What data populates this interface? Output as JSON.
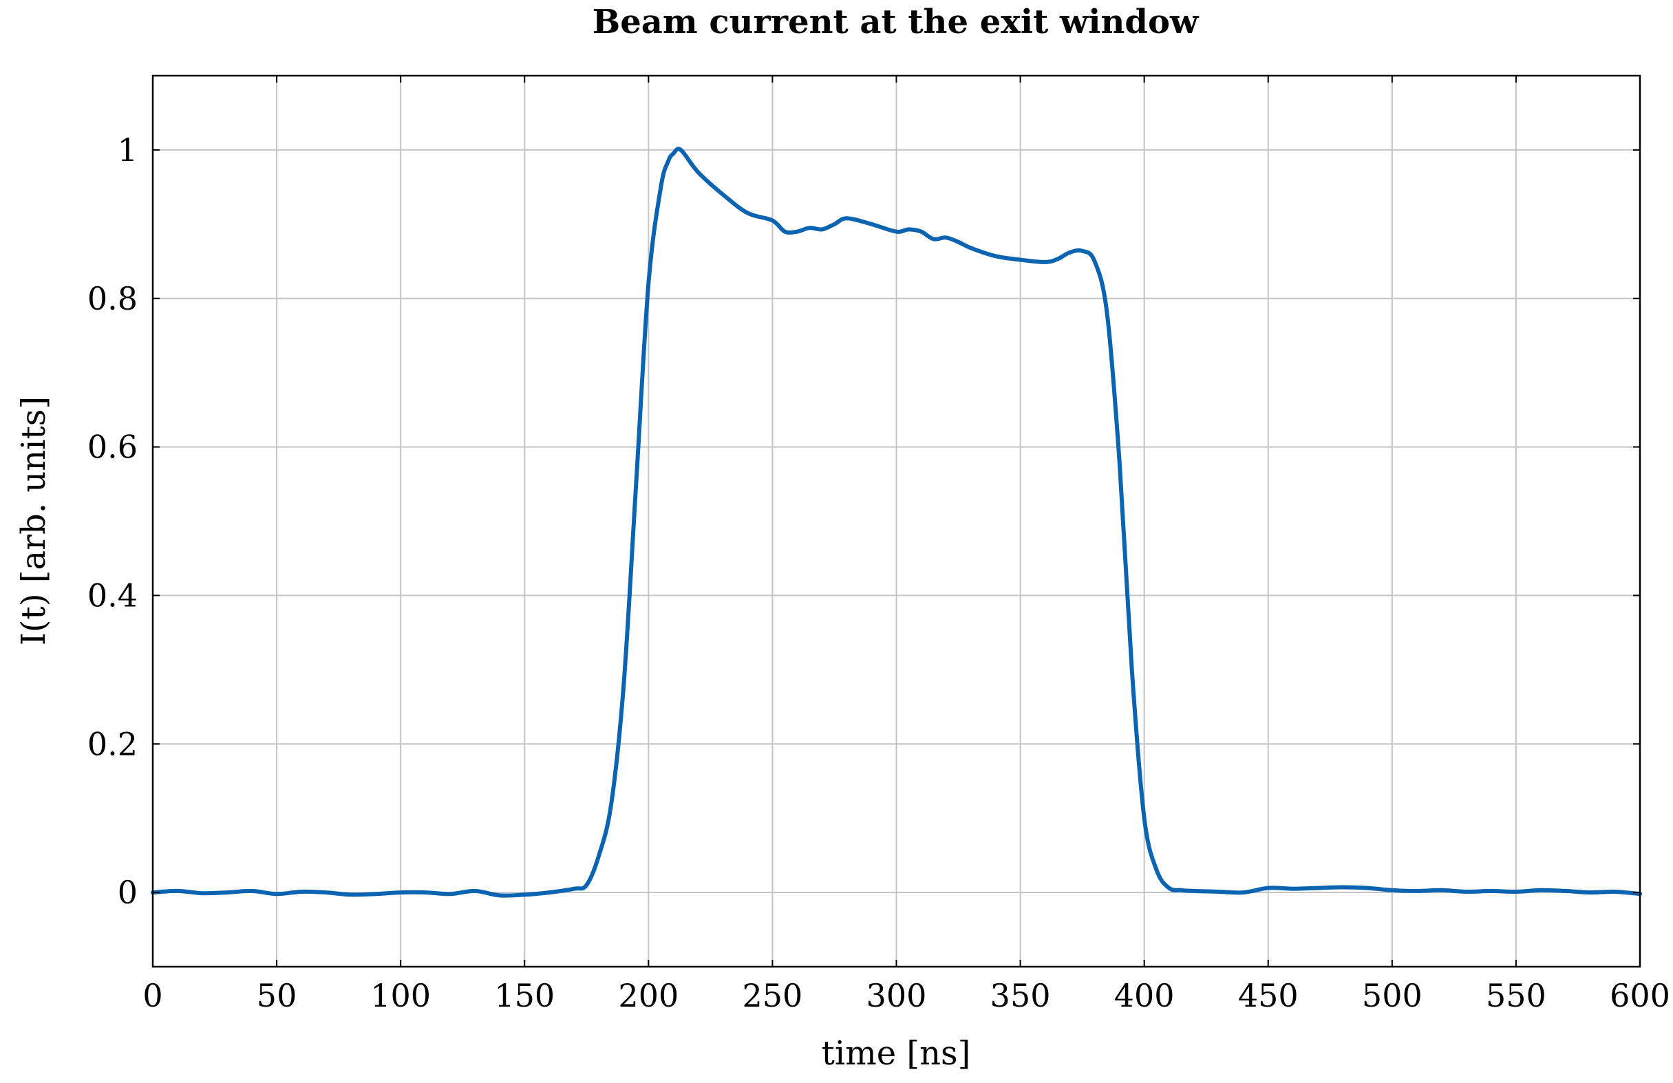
{
  "chart_data": {
    "type": "line",
    "title": "Beam current at the exit window",
    "xlabel": "time [ns]",
    "ylabel": "I(t) [arb. units]",
    "xlim": [
      0,
      600
    ],
    "ylim": [
      -0.1,
      1.1
    ],
    "xticks": [
      0,
      50,
      100,
      150,
      200,
      250,
      300,
      350,
      400,
      450,
      500,
      550,
      600
    ],
    "yticks": [
      0,
      0.2,
      0.4,
      0.6,
      0.8,
      1
    ],
    "xtick_labels": [
      "0",
      "50",
      "100",
      "150",
      "200",
      "250",
      "300",
      "350",
      "400",
      "450",
      "500",
      "550",
      "600"
    ],
    "ytick_labels": [
      "0",
      "0.2",
      "0.4",
      "0.6",
      "0.8",
      "1"
    ],
    "grid": true,
    "colors": {
      "series": "#0a64b1"
    },
    "series": [
      {
        "x": [
          0,
          10,
          20,
          30,
          40,
          50,
          60,
          70,
          80,
          90,
          100,
          110,
          120,
          130,
          140,
          150,
          160,
          170,
          175,
          180,
          185,
          190,
          195,
          200,
          205,
          208,
          210,
          213,
          220,
          230,
          240,
          250,
          255,
          260,
          265,
          270,
          275,
          280,
          290,
          300,
          305,
          310,
          315,
          320,
          325,
          330,
          340,
          350,
          360,
          365,
          370,
          375,
          380,
          385,
          390,
          395,
          400,
          405,
          410,
          415,
          420,
          430,
          440,
          450,
          460,
          470,
          480,
          490,
          500,
          510,
          520,
          530,
          540,
          550,
          560,
          570,
          580,
          590,
          600
        ],
        "y": [
          0.0,
          0.002,
          -0.001,
          0.0,
          0.002,
          -0.002,
          0.001,
          0.0,
          -0.003,
          -0.002,
          0.0,
          0.0,
          -0.002,
          0.002,
          -0.004,
          -0.003,
          0.0,
          0.005,
          0.01,
          0.05,
          0.12,
          0.28,
          0.55,
          0.82,
          0.95,
          0.985,
          0.995,
          1.0,
          0.97,
          0.94,
          0.915,
          0.905,
          0.89,
          0.89,
          0.895,
          0.893,
          0.9,
          0.908,
          0.9,
          0.89,
          0.893,
          0.89,
          0.88,
          0.882,
          0.876,
          0.868,
          0.857,
          0.852,
          0.849,
          0.853,
          0.862,
          0.864,
          0.85,
          0.78,
          0.58,
          0.3,
          0.1,
          0.03,
          0.006,
          0.003,
          0.002,
          0.001,
          0.0,
          0.006,
          0.005,
          0.006,
          0.007,
          0.006,
          0.003,
          0.002,
          0.003,
          0.001,
          0.002,
          0.001,
          0.003,
          0.002,
          0.0,
          0.001,
          -0.002
        ]
      }
    ]
  }
}
